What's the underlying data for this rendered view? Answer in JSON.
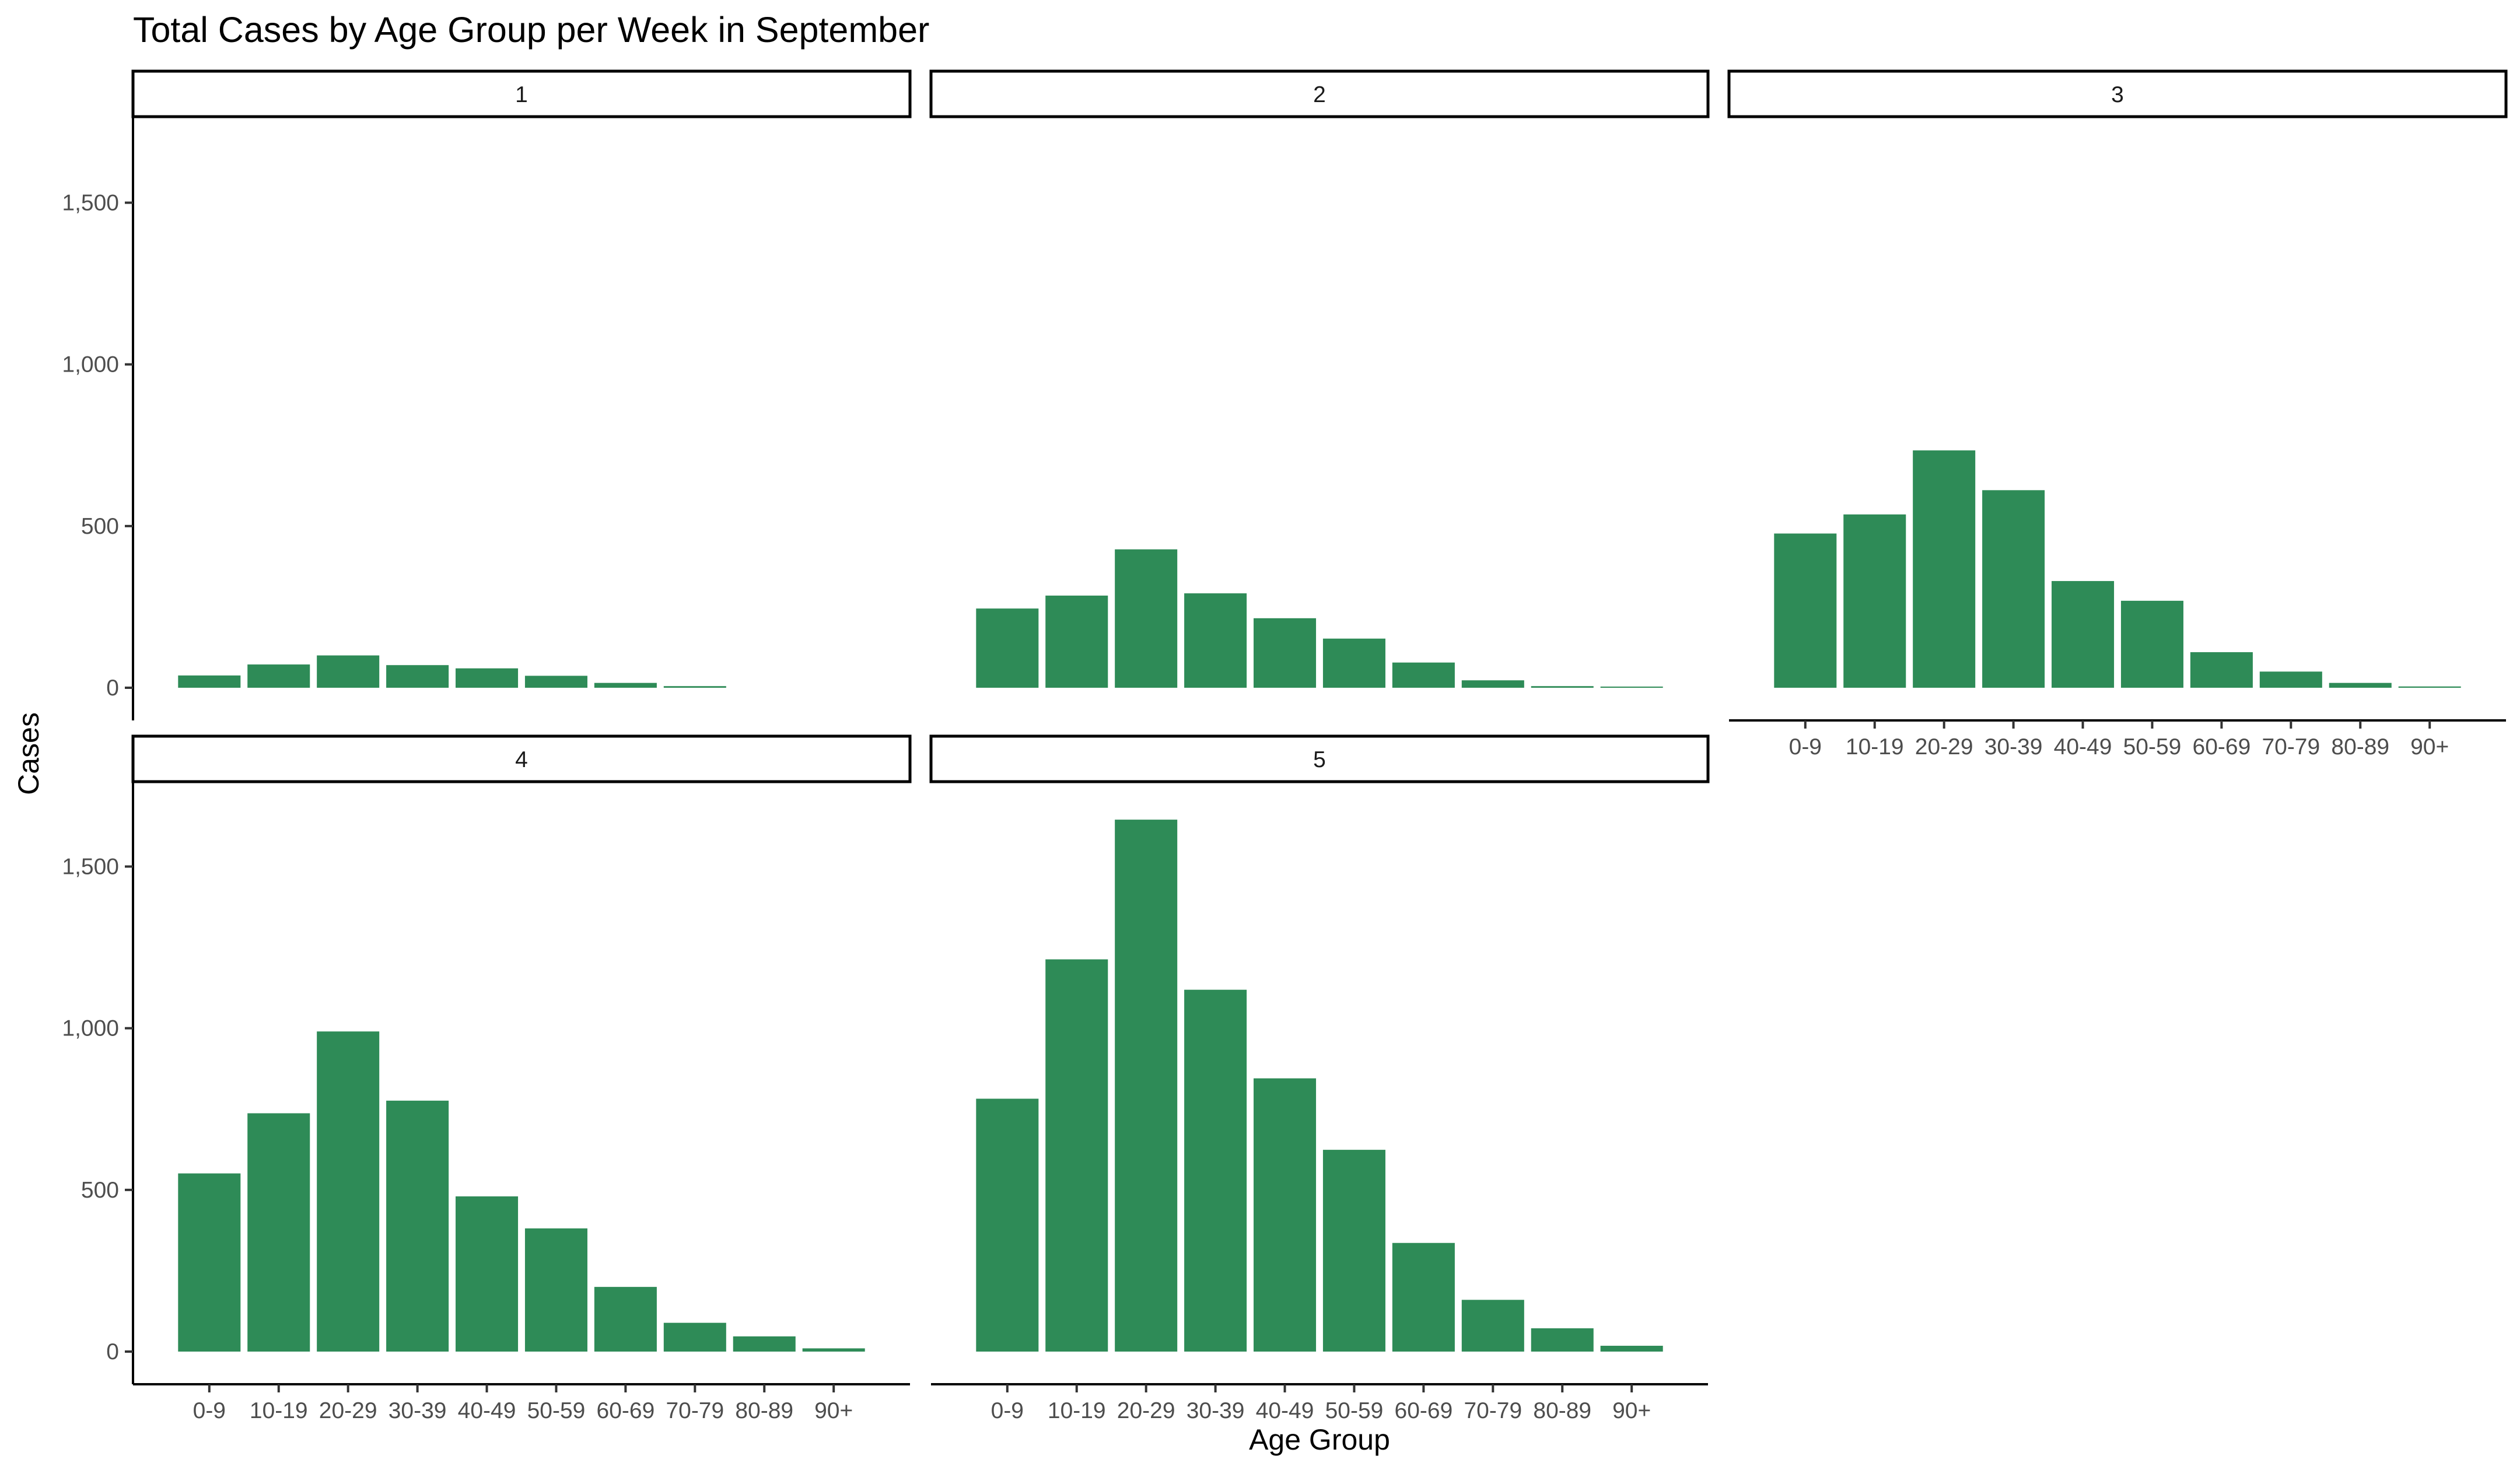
{
  "chart_data": {
    "type": "bar",
    "title": "Total Cases by Age Group per Week in September",
    "xlabel": "Age Group",
    "ylabel": "Cases",
    "categories": [
      "0-9",
      "10-19",
      "20-29",
      "30-39",
      "40-49",
      "50-59",
      "60-69",
      "70-79",
      "80-89",
      "90+"
    ],
    "ylim": [
      0,
      1730
    ],
    "yticks": [
      0,
      500,
      1000,
      1500
    ],
    "ytick_labels": [
      "0",
      "500",
      "1,000",
      "1,500"
    ],
    "bar_color": "#2e8b57",
    "grid": false,
    "facets": [
      {
        "label": "1",
        "values": [
          38,
          72,
          100,
          70,
          60,
          37,
          15,
          5,
          0,
          0
        ]
      },
      {
        "label": "2",
        "values": [
          245,
          285,
          428,
          292,
          215,
          152,
          78,
          23,
          5,
          3
        ]
      },
      {
        "label": "3",
        "values": [
          477,
          536,
          734,
          611,
          330,
          269,
          110,
          50,
          15,
          4
        ]
      },
      {
        "label": "4",
        "values": [
          551,
          737,
          990,
          776,
          480,
          381,
          200,
          89,
          47,
          10
        ]
      },
      {
        "label": "5",
        "values": [
          782,
          1213,
          1645,
          1119,
          845,
          624,
          336,
          160,
          72,
          18
        ]
      }
    ]
  }
}
